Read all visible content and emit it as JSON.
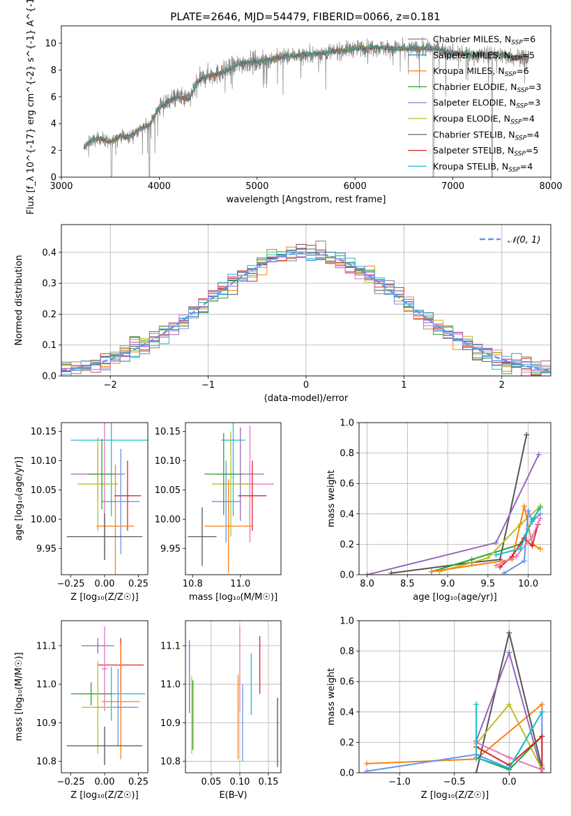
{
  "figure": {
    "title": "PLATE=2646, MJD=54479, FIBERID=0066, z=0.181"
  },
  "colors": {
    "Chabrier MILES": "#7f7f7f",
    "Salpeter MILES": "#1f77b4",
    "Kroupa MILES": "#ff7f0e",
    "Chabrier ELODIE": "#2ca02c",
    "Salpeter ELODIE": "#9467bd",
    "Kroupa ELODIE": "#bcbd22",
    "Chabrier STELIB": "#555555",
    "Salpeter STELIB": "#d62728",
    "Kroupa STELIB": "#17becf"
  },
  "chart_data": [
    {
      "id": "spectrum",
      "type": "line",
      "title": "PLATE=2646, MJD=54479, FIBERID=0066, z=0.181",
      "xlabel": "wavelength [Angstrom, rest frame]",
      "ylabel": "Flux [f_λ 10^{-17} erg cm^{-2} s^{-1} A^{-1}]",
      "xlim": [
        3000,
        8000
      ],
      "ylim": [
        0,
        11.3
      ],
      "xticks": [
        3000,
        4000,
        5000,
        6000,
        7000,
        8000
      ],
      "yticks": [
        0,
        2,
        4,
        6,
        8,
        10
      ],
      "grid": false,
      "legend_position": "upper-right",
      "legend": [
        {
          "name": "Chabrier MILES",
          "nssp": "6",
          "color": "#7f7f7f"
        },
        {
          "name": "Salpeter MILES",
          "nssp": "5",
          "color": "#1f77b4"
        },
        {
          "name": "Kroupa MILES",
          "nssp": "6",
          "color": "#ff7f0e"
        },
        {
          "name": "Chabrier ELODIE",
          "nssp": "3",
          "color": "#2ca02c"
        },
        {
          "name": "Salpeter ELODIE",
          "nssp": "3",
          "color": "#9467bd"
        },
        {
          "name": "Kroupa ELODIE",
          "nssp": "4",
          "color": "#bcbd22"
        },
        {
          "name": "Chabrier STELIB",
          "nssp": "4",
          "color": "#555555"
        },
        {
          "name": "Salpeter STELIB",
          "nssp": "5",
          "color": "#d62728"
        },
        {
          "name": "Kroupa STELIB",
          "nssp": "4",
          "color": "#17becf"
        }
      ],
      "envelope": {
        "x": [
          3230,
          3300,
          3400,
          3500,
          3600,
          3700,
          3800,
          3900,
          4000,
          4100,
          4200,
          4300,
          4400,
          4500,
          4600,
          4700,
          4800,
          4900,
          5000,
          5200,
          5400,
          5600,
          5800,
          6000,
          6200,
          6400,
          6600,
          6800,
          7000,
          7200,
          7400,
          7600,
          7800
        ],
        "y": [
          2.2,
          2.7,
          2.9,
          2.6,
          3.1,
          3.0,
          3.6,
          3.9,
          5.2,
          5.7,
          6.0,
          5.8,
          7.2,
          7.6,
          7.7,
          8.0,
          8.4,
          8.6,
          8.6,
          8.9,
          9.1,
          9.2,
          9.4,
          9.6,
          9.7,
          9.6,
          9.6,
          9.6,
          9.3,
          9.1,
          9.2,
          9.0,
          8.9
        ]
      }
    },
    {
      "id": "residuals",
      "type": "line",
      "xlabel": "(data-model)/error",
      "ylabel": "Normed distribution",
      "xlim": [
        -2.5,
        2.5
      ],
      "ylim": [
        0,
        0.49
      ],
      "xticks": [
        -2,
        -1,
        0,
        1,
        2
      ],
      "xticklabels": [
        "−2",
        "−1",
        "0",
        "1",
        "2"
      ],
      "yticks": [
        0.0,
        0.1,
        0.2,
        0.3,
        0.4
      ],
      "yticklabels": [
        "0.0",
        "0.1",
        "0.2",
        "0.3",
        "0.4"
      ],
      "grid": true,
      "legend_position": "upper-right",
      "legend_label": "𝒩(0, 1)",
      "normal_curve": {
        "mean": 0,
        "sigma": 1,
        "color": "#6495ed"
      },
      "bin_width": 0.1
    },
    {
      "id": "age-vs-Z",
      "type": "scatter",
      "xlabel": "Z [log₁₀(Z/Z☉)]",
      "ylabel": "age  [log₁₀(age/yr)]",
      "xlim": [
        -0.32,
        0.32
      ],
      "ylim": [
        9.905,
        10.165
      ],
      "xticks": [
        -0.25,
        0.0,
        0.25
      ],
      "xticklabels": [
        "−0.25",
        "0.00",
        "0.25"
      ],
      "yticks": [
        9.95,
        10.0,
        10.05,
        10.1,
        10.15
      ],
      "yticklabels": [
        "9.95",
        "10.00",
        "10.05",
        "10.10",
        "10.15"
      ],
      "grid": false,
      "points": [
        {
          "color": "#17becf",
          "x": 0.05,
          "xerr": 0.3,
          "y": 10.135,
          "yerr": 0.13
        },
        {
          "color": "#e377c2",
          "x": 0.0,
          "xerr": 0.02,
          "y": 10.06,
          "yerr": 0.13
        },
        {
          "color": "#9467bd",
          "x": -0.05,
          "xerr": 0.2,
          "y": 10.077,
          "yerr": 0.045
        },
        {
          "color": "#bcbd22",
          "x": -0.05,
          "xerr": 0.15,
          "y": 10.06,
          "yerr": 0.08
        },
        {
          "color": "#d62728",
          "x": 0.17,
          "xerr": 0.1,
          "y": 10.04,
          "yerr": 0.06
        },
        {
          "color": "#6495ed",
          "x": 0.12,
          "xerr": 0.14,
          "y": 10.03,
          "yerr": 0.09
        },
        {
          "color": "#ff7f0e",
          "x": 0.08,
          "xerr": 0.14,
          "y": 9.988,
          "yerr": 0.105
        },
        {
          "color": "#555555",
          "x": 0.0,
          "xerr": 0.28,
          "y": 9.97,
          "yerr": 0.04
        },
        {
          "color": "#2ca02c",
          "x": -0.02,
          "xerr": 0.1,
          "y": 10.077,
          "yerr": 0.06
        }
      ]
    },
    {
      "id": "age-vs-mass",
      "type": "scatter",
      "xlabel": "mass [log₁₀(M/M☉)]",
      "ylabel": "",
      "xlim": [
        10.77,
        11.17
      ],
      "ylim": [
        9.905,
        10.165
      ],
      "xticks": [
        10.8,
        11.0
      ],
      "xticklabels": [
        "10.8",
        "11.0"
      ],
      "yticks": [
        9.95,
        10.0,
        10.05,
        10.1,
        10.15
      ],
      "yticklabels": [
        "9.95",
        "10.00",
        "10.05",
        "10.10",
        "10.15"
      ],
      "grid": false,
      "points": [
        {
          "color": "#17becf",
          "x": 10.97,
          "xerr": 0.05,
          "y": 10.135,
          "yerr": 0.13
        },
        {
          "color": "#e377c2",
          "x": 11.04,
          "xerr": 0.1,
          "y": 10.06,
          "yerr": 0.1
        },
        {
          "color": "#9467bd",
          "x": 11.0,
          "xerr": 0.1,
          "y": 10.077,
          "yerr": 0.08
        },
        {
          "color": "#bcbd22",
          "x": 10.96,
          "xerr": 0.08,
          "y": 10.06,
          "yerr": 0.09
        },
        {
          "color": "#d62728",
          "x": 11.05,
          "xerr": 0.06,
          "y": 10.04,
          "yerr": 0.06
        },
        {
          "color": "#6495ed",
          "x": 10.94,
          "xerr": 0.06,
          "y": 10.03,
          "yerr": 0.07
        },
        {
          "color": "#ff7f0e",
          "x": 10.95,
          "xerr": 0.1,
          "y": 9.988,
          "yerr": 0.08
        },
        {
          "color": "#555555",
          "x": 10.84,
          "xerr": 0.06,
          "y": 9.97,
          "yerr": 0.05
        },
        {
          "color": "#2ca02c",
          "x": 10.93,
          "xerr": 0.08,
          "y": 10.077,
          "yerr": 0.07
        }
      ]
    },
    {
      "id": "weight-vs-age",
      "type": "line",
      "xlabel": "age  [log₁₀(age/yr)]",
      "ylabel": "mass weight",
      "xlim": [
        7.9,
        10.28
      ],
      "ylim": [
        0,
        1
      ],
      "xticks": [
        8.0,
        8.5,
        9.0,
        9.5,
        10.0
      ],
      "xticklabels": [
        "8.0",
        "8.5",
        "9.0",
        "9.5",
        "10.0"
      ],
      "yticks": [
        0.0,
        0.2,
        0.4,
        0.6,
        0.8,
        1.0
      ],
      "yticklabels": [
        "0.0",
        "0.2",
        "0.4",
        "0.6",
        "0.8",
        "1.0"
      ],
      "grid": true,
      "series": [
        {
          "color": "#555555",
          "x": [
            8.3,
            9.3,
            9.65,
            9.98
          ],
          "y": [
            0.01,
            0.08,
            0.1,
            0.92
          ]
        },
        {
          "color": "#9467bd",
          "x": [
            8.0,
            9.6,
            10.13
          ],
          "y": [
            0.0,
            0.21,
            0.79
          ]
        },
        {
          "color": "#2ca02c",
          "x": [
            8.8,
            9.3,
            9.9,
            10.15
          ],
          "y": [
            0.02,
            0.1,
            0.2,
            0.45
          ]
        },
        {
          "color": "#bcbd22",
          "x": [
            8.9,
            9.5,
            9.9,
            10.15
          ],
          "y": [
            0.02,
            0.11,
            0.33,
            0.45
          ]
        },
        {
          "color": "#ff7f0e",
          "x": [
            8.8,
            9.8,
            9.95,
            10.05,
            10.15
          ],
          "y": [
            0.02,
            0.1,
            0.45,
            0.2,
            0.17
          ]
        },
        {
          "color": "#6495ed",
          "x": [
            9.7,
            9.95,
            10.0,
            10.05,
            10.15
          ],
          "y": [
            0.01,
            0.09,
            0.42,
            0.35,
            0.4
          ]
        },
        {
          "color": "#d62728",
          "x": [
            9.65,
            9.8,
            9.95,
            10.05,
            10.12
          ],
          "y": [
            0.05,
            0.12,
            0.24,
            0.19,
            0.33
          ]
        },
        {
          "color": "#e377c2",
          "x": [
            9.6,
            9.85,
            10.05,
            10.15
          ],
          "y": [
            0.06,
            0.12,
            0.25,
            0.37
          ]
        },
        {
          "color": "#17becf",
          "x": [
            9.6,
            9.9,
            10.05,
            10.15
          ],
          "y": [
            0.13,
            0.17,
            0.36,
            0.44
          ]
        }
      ]
    },
    {
      "id": "mass-vs-Z",
      "type": "scatter",
      "xlabel": "Z [log₁₀(Z/Z☉)]",
      "ylabel": "mass [log₁₀(M/M☉)]",
      "xlim": [
        -0.32,
        0.32
      ],
      "ylim": [
        10.77,
        11.165
      ],
      "xticks": [
        -0.25,
        0.0,
        0.25
      ],
      "xticklabels": [
        "−0.25",
        "0.00",
        "0.25"
      ],
      "yticks": [
        10.8,
        10.9,
        11.0,
        11.1
      ],
      "yticklabels": [
        "10.8",
        "10.9",
        "11.0",
        "11.1"
      ],
      "grid": false,
      "points": [
        {
          "color": "#9467bd",
          "x": -0.05,
          "xerr": 0.12,
          "y": 11.1,
          "yerr": 0.02
        },
        {
          "color": "#d62728",
          "x": 0.12,
          "xerr": 0.17,
          "y": 11.05,
          "yerr": 0.07
        },
        {
          "color": "#e377c2",
          "x": 0.0,
          "xerr": 0.02,
          "y": 11.04,
          "yerr": 0.11
        },
        {
          "color": "#17becf",
          "x": 0.05,
          "xerr": 0.25,
          "y": 10.975,
          "yerr": 0.07
        },
        {
          "color": "#2ca02c",
          "x": -0.1,
          "xerr": 0.15,
          "y": 10.975,
          "yerr": 0.03
        },
        {
          "color": "#ff7f0e",
          "x": 0.12,
          "xerr": 0.14,
          "y": 10.955,
          "yerr": 0.15
        },
        {
          "color": "#6495ed",
          "x": 0.1,
          "xerr": 0.15,
          "y": 10.94,
          "yerr": 0.1
        },
        {
          "color": "#bcbd22",
          "x": -0.05,
          "xerr": 0.12,
          "y": 10.94,
          "yerr": 0.12
        },
        {
          "color": "#555555",
          "x": 0.0,
          "xerr": 0.28,
          "y": 10.84,
          "yerr": 0.05
        }
      ]
    },
    {
      "id": "mass-vs-ebv",
      "type": "scatter",
      "xlabel": "E(B-V)",
      "ylabel": "",
      "xlim": [
        0.005,
        0.172
      ],
      "ylim": [
        10.77,
        11.165
      ],
      "xticks": [
        0.05,
        0.1,
        0.15
      ],
      "xticklabels": [
        "0.05",
        "0.10",
        "0.15"
      ],
      "yticks": [
        10.8,
        10.9,
        11.0,
        11.1
      ],
      "yticklabels": [
        "10.8",
        "10.9",
        "11.0",
        "11.1"
      ],
      "grid": true,
      "points": [
        {
          "color": "#9467bd",
          "x": 0.012,
          "y": 11.02,
          "yerr": 0.095
        },
        {
          "color": "#bcbd22",
          "x": 0.016,
          "y": 10.92,
          "yerr": 0.1
        },
        {
          "color": "#2ca02c",
          "x": 0.018,
          "y": 10.92,
          "yerr": 0.09
        },
        {
          "color": "#e377c2",
          "x": 0.1,
          "y": 11.04,
          "yerr": 0.11
        },
        {
          "color": "#ff7f0e",
          "x": 0.097,
          "y": 10.915,
          "yerr": 0.11
        },
        {
          "color": "#6495ed",
          "x": 0.105,
          "y": 10.9,
          "yerr": 0.1
        },
        {
          "color": "#17becf",
          "x": 0.12,
          "y": 11.0,
          "yerr": 0.08
        },
        {
          "color": "#d62728",
          "x": 0.135,
          "y": 11.05,
          "yerr": 0.075
        },
        {
          "color": "#555555",
          "x": 0.166,
          "y": 10.875,
          "yerr": 0.09
        }
      ]
    },
    {
      "id": "weight-vs-Z",
      "type": "line",
      "xlabel": "Z [log₁₀(Z/Z☉)]",
      "ylabel": "mass weight",
      "xlim": [
        -1.37,
        0.38
      ],
      "ylim": [
        0,
        1
      ],
      "xticks": [
        -1.0,
        -0.5,
        0.0
      ],
      "xticklabels": [
        "−1.0",
        "−0.5",
        "0.0"
      ],
      "yticks": [
        0.0,
        0.2,
        0.4,
        0.6,
        0.8,
        1.0
      ],
      "yticklabels": [
        "0.0",
        "0.2",
        "0.4",
        "0.6",
        "0.8",
        "1.0"
      ],
      "grid": true,
      "series": [
        {
          "color": "#ff7f0e",
          "x": [
            -1.3,
            -0.3,
            0.3,
            0.3
          ],
          "y": [
            0.06,
            0.09,
            0.45,
            0.02
          ]
        },
        {
          "color": "#6495ed",
          "x": [
            -1.3,
            -0.3,
            0.0,
            0.3,
            0.3
          ],
          "y": [
            0.01,
            0.12,
            0.03,
            0.4,
            0.05
          ]
        },
        {
          "color": "#555555",
          "x": [
            -0.3,
            0.0,
            0.3
          ],
          "y": [
            0.0,
            0.92,
            0.03
          ]
        },
        {
          "color": "#9467bd",
          "x": [
            -0.3,
            0.0,
            0.3
          ],
          "y": [
            0.21,
            0.79,
            0.0
          ]
        },
        {
          "color": "#2ca02c",
          "x": [
            -0.3,
            0.0,
            0.3
          ],
          "y": [
            0.1,
            0.02,
            0.24
          ]
        },
        {
          "color": "#bcbd22",
          "x": [
            -0.3,
            0.0,
            0.3
          ],
          "y": [
            0.19,
            0.45,
            0.02
          ]
        },
        {
          "color": "#d62728",
          "x": [
            -0.3,
            0.0,
            0.3,
            0.3
          ],
          "y": [
            0.17,
            0.05,
            0.24,
            0.0
          ]
        },
        {
          "color": "#e377c2",
          "x": [
            -0.3,
            0.0,
            0.3
          ],
          "y": [
            0.2,
            0.1,
            0.02
          ]
        },
        {
          "color": "#17becf",
          "x": [
            -0.3,
            -0.3,
            0.0,
            0.3
          ],
          "y": [
            0.45,
            0.1,
            0.03,
            0.4
          ]
        }
      ]
    }
  ]
}
